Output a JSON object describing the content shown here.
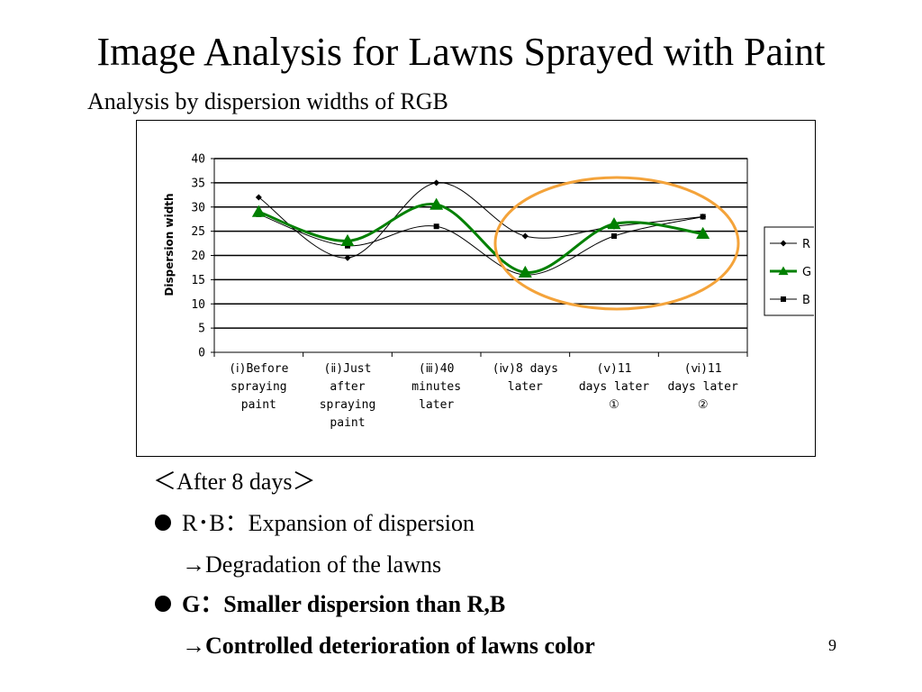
{
  "slide": {
    "title": "Image Analysis for Lawns Sprayed with Paint",
    "subtitle": "Analysis by dispersion widths of RGB",
    "page_number": "9"
  },
  "bullets": {
    "heading": "＜After 8 days＞",
    "item1": "R･B：Expansion of dispersion",
    "item1_sub": "→Degradation of the lawns",
    "item2": "G：Smaller dispersion than R,B",
    "item2_sub": "→Controlled deterioration of lawns color"
  },
  "colors": {
    "R": "#000000",
    "G": "#008000",
    "B": "#000000",
    "highlight": "#f4a33a"
  },
  "chart_data": {
    "type": "line",
    "title": "",
    "xlabel": "",
    "ylabel": "Dispersion width",
    "ylim": [
      0,
      40
    ],
    "yticks": [
      0,
      5,
      10,
      15,
      20,
      25,
      30,
      35,
      40
    ],
    "grid": true,
    "legend": "right",
    "categories": [
      [
        "(ⅰ)Before",
        "spraying",
        "paint"
      ],
      [
        "(ⅱ)Just",
        "after",
        "spraying",
        "paint"
      ],
      [
        "(ⅲ)40",
        "minutes",
        "later"
      ],
      [
        "(ⅳ)8 days",
        "later"
      ],
      [
        "(ⅴ)11",
        "days later",
        "①"
      ],
      [
        "(ⅵ)11",
        "days later",
        "②"
      ]
    ],
    "series": [
      {
        "name": "R",
        "values": [
          32,
          19.5,
          35,
          24,
          26,
          28
        ],
        "marker": "diamond"
      },
      {
        "name": "G",
        "values": [
          29,
          23,
          30.5,
          16.5,
          26.5,
          24.5
        ],
        "marker": "triangle"
      },
      {
        "name": "B",
        "values": [
          28.5,
          22,
          26,
          16,
          24,
          28
        ],
        "marker": "square"
      }
    ],
    "annotation": "highlight ellipse around categories (ⅳ) to (ⅵ)"
  }
}
